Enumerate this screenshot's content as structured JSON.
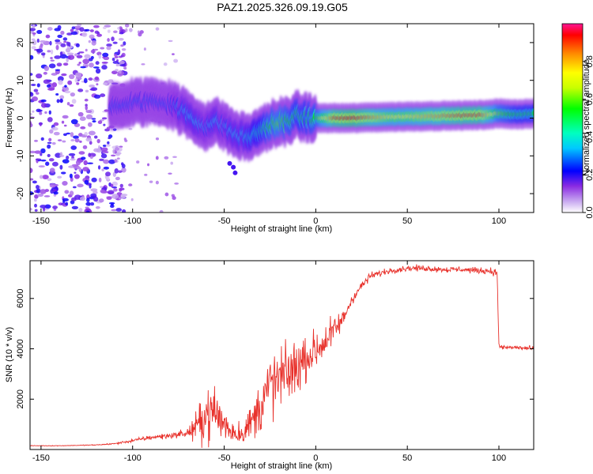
{
  "title": "PAZ1.2025.326.09.19.G05",
  "colors": {
    "snr_line": "#e8312b",
    "ridge_peak": "#e8112b",
    "noise": "#8a2be2",
    "axis": "#000000"
  },
  "chart_data": [
    {
      "type": "heatmap",
      "name": "spectrogram",
      "xlabel": "Height of straight line (km)",
      "ylabel": "Frequency (Hz)",
      "xlim": [
        -156,
        119
      ],
      "ylim": [
        -25,
        25
      ],
      "xticks": [
        -150,
        -100,
        -50,
        0,
        50,
        100
      ],
      "yticks": [
        -20,
        -10,
        0,
        10,
        20
      ],
      "grid": false,
      "ridge_track": {
        "x": [
          -112,
          -100,
          -90,
          -80,
          -75,
          -70,
          -65,
          -60,
          -55,
          -50,
          -45,
          -40,
          -35,
          -30,
          -25,
          -20,
          -15,
          -10,
          -5,
          0,
          10,
          20,
          30,
          40,
          50,
          60,
          70,
          80,
          90,
          100,
          110,
          119
        ],
        "freq": [
          3,
          4,
          4.5,
          4,
          2.5,
          1,
          -1,
          -2,
          -1,
          -2,
          -4,
          -5,
          -5,
          -3,
          -2,
          -1.5,
          -0.5,
          0.5,
          0,
          0,
          0,
          0,
          0.2,
          0.3,
          0.4,
          0.5,
          0.6,
          0.7,
          0.8,
          1.2,
          1,
          1.2
        ],
        "amplitude": [
          0.25,
          0.25,
          0.25,
          0.25,
          0.3,
          0.35,
          0.35,
          0.3,
          0.35,
          0.3,
          0.35,
          0.35,
          0.4,
          0.45,
          0.55,
          0.6,
          0.55,
          0.5,
          0.5,
          0.55,
          0.9,
          0.95,
          0.85,
          0.75,
          0.75,
          0.8,
          0.85,
          0.9,
          0.9,
          0.6,
          0.5,
          0.5
        ]
      },
      "noise_region_km": [
        -156,
        -110
      ]
    },
    {
      "type": "colorbar",
      "name": "amplitude-colorbar",
      "label": "Normalized spectral amplitude",
      "range": [
        0,
        1
      ],
      "ticks": [
        "0.0",
        "0.2",
        "0.4",
        "0.6",
        "0.8"
      ],
      "tick_values": [
        0,
        0.2,
        0.4,
        0.6,
        0.8
      ]
    },
    {
      "type": "line",
      "name": "snr",
      "xlabel": "Height of straight line (km)",
      "ylabel": "SNR (10 * v/v)",
      "xlim": [
        -156,
        119
      ],
      "ylim": [
        0,
        7500
      ],
      "xticks": [
        -150,
        -100,
        -50,
        0,
        50,
        100
      ],
      "yticks": [
        2000,
        4000,
        6000
      ],
      "grid": false,
      "x": [
        -156,
        -140,
        -120,
        -110,
        -100,
        -90,
        -80,
        -70,
        -65,
        -60,
        -55,
        -50,
        -45,
        -40,
        -35,
        -30,
        -25,
        -20,
        -15,
        -10,
        -5,
        0,
        5,
        10,
        15,
        20,
        25,
        30,
        40,
        50,
        60,
        70,
        80,
        90,
        95,
        99,
        100,
        101,
        110,
        119
      ],
      "y": [
        150,
        150,
        180,
        230,
        350,
        480,
        550,
        650,
        900,
        1400,
        1500,
        1000,
        700,
        650,
        1100,
        1800,
        2500,
        2800,
        3000,
        3300,
        3700,
        3900,
        4300,
        4700,
        5200,
        6000,
        6500,
        6900,
        7100,
        7200,
        7200,
        7150,
        7150,
        7100,
        7100,
        7000,
        4200,
        4050,
        4050,
        4000
      ],
      "noise": [
        10,
        10,
        15,
        25,
        60,
        80,
        100,
        150,
        500,
        900,
        900,
        700,
        400,
        400,
        600,
        1000,
        1200,
        1100,
        1000,
        900,
        800,
        700,
        600,
        500,
        300,
        200,
        150,
        120,
        100,
        100,
        100,
        100,
        100,
        100,
        120,
        120,
        80,
        80,
        80,
        80
      ]
    }
  ]
}
